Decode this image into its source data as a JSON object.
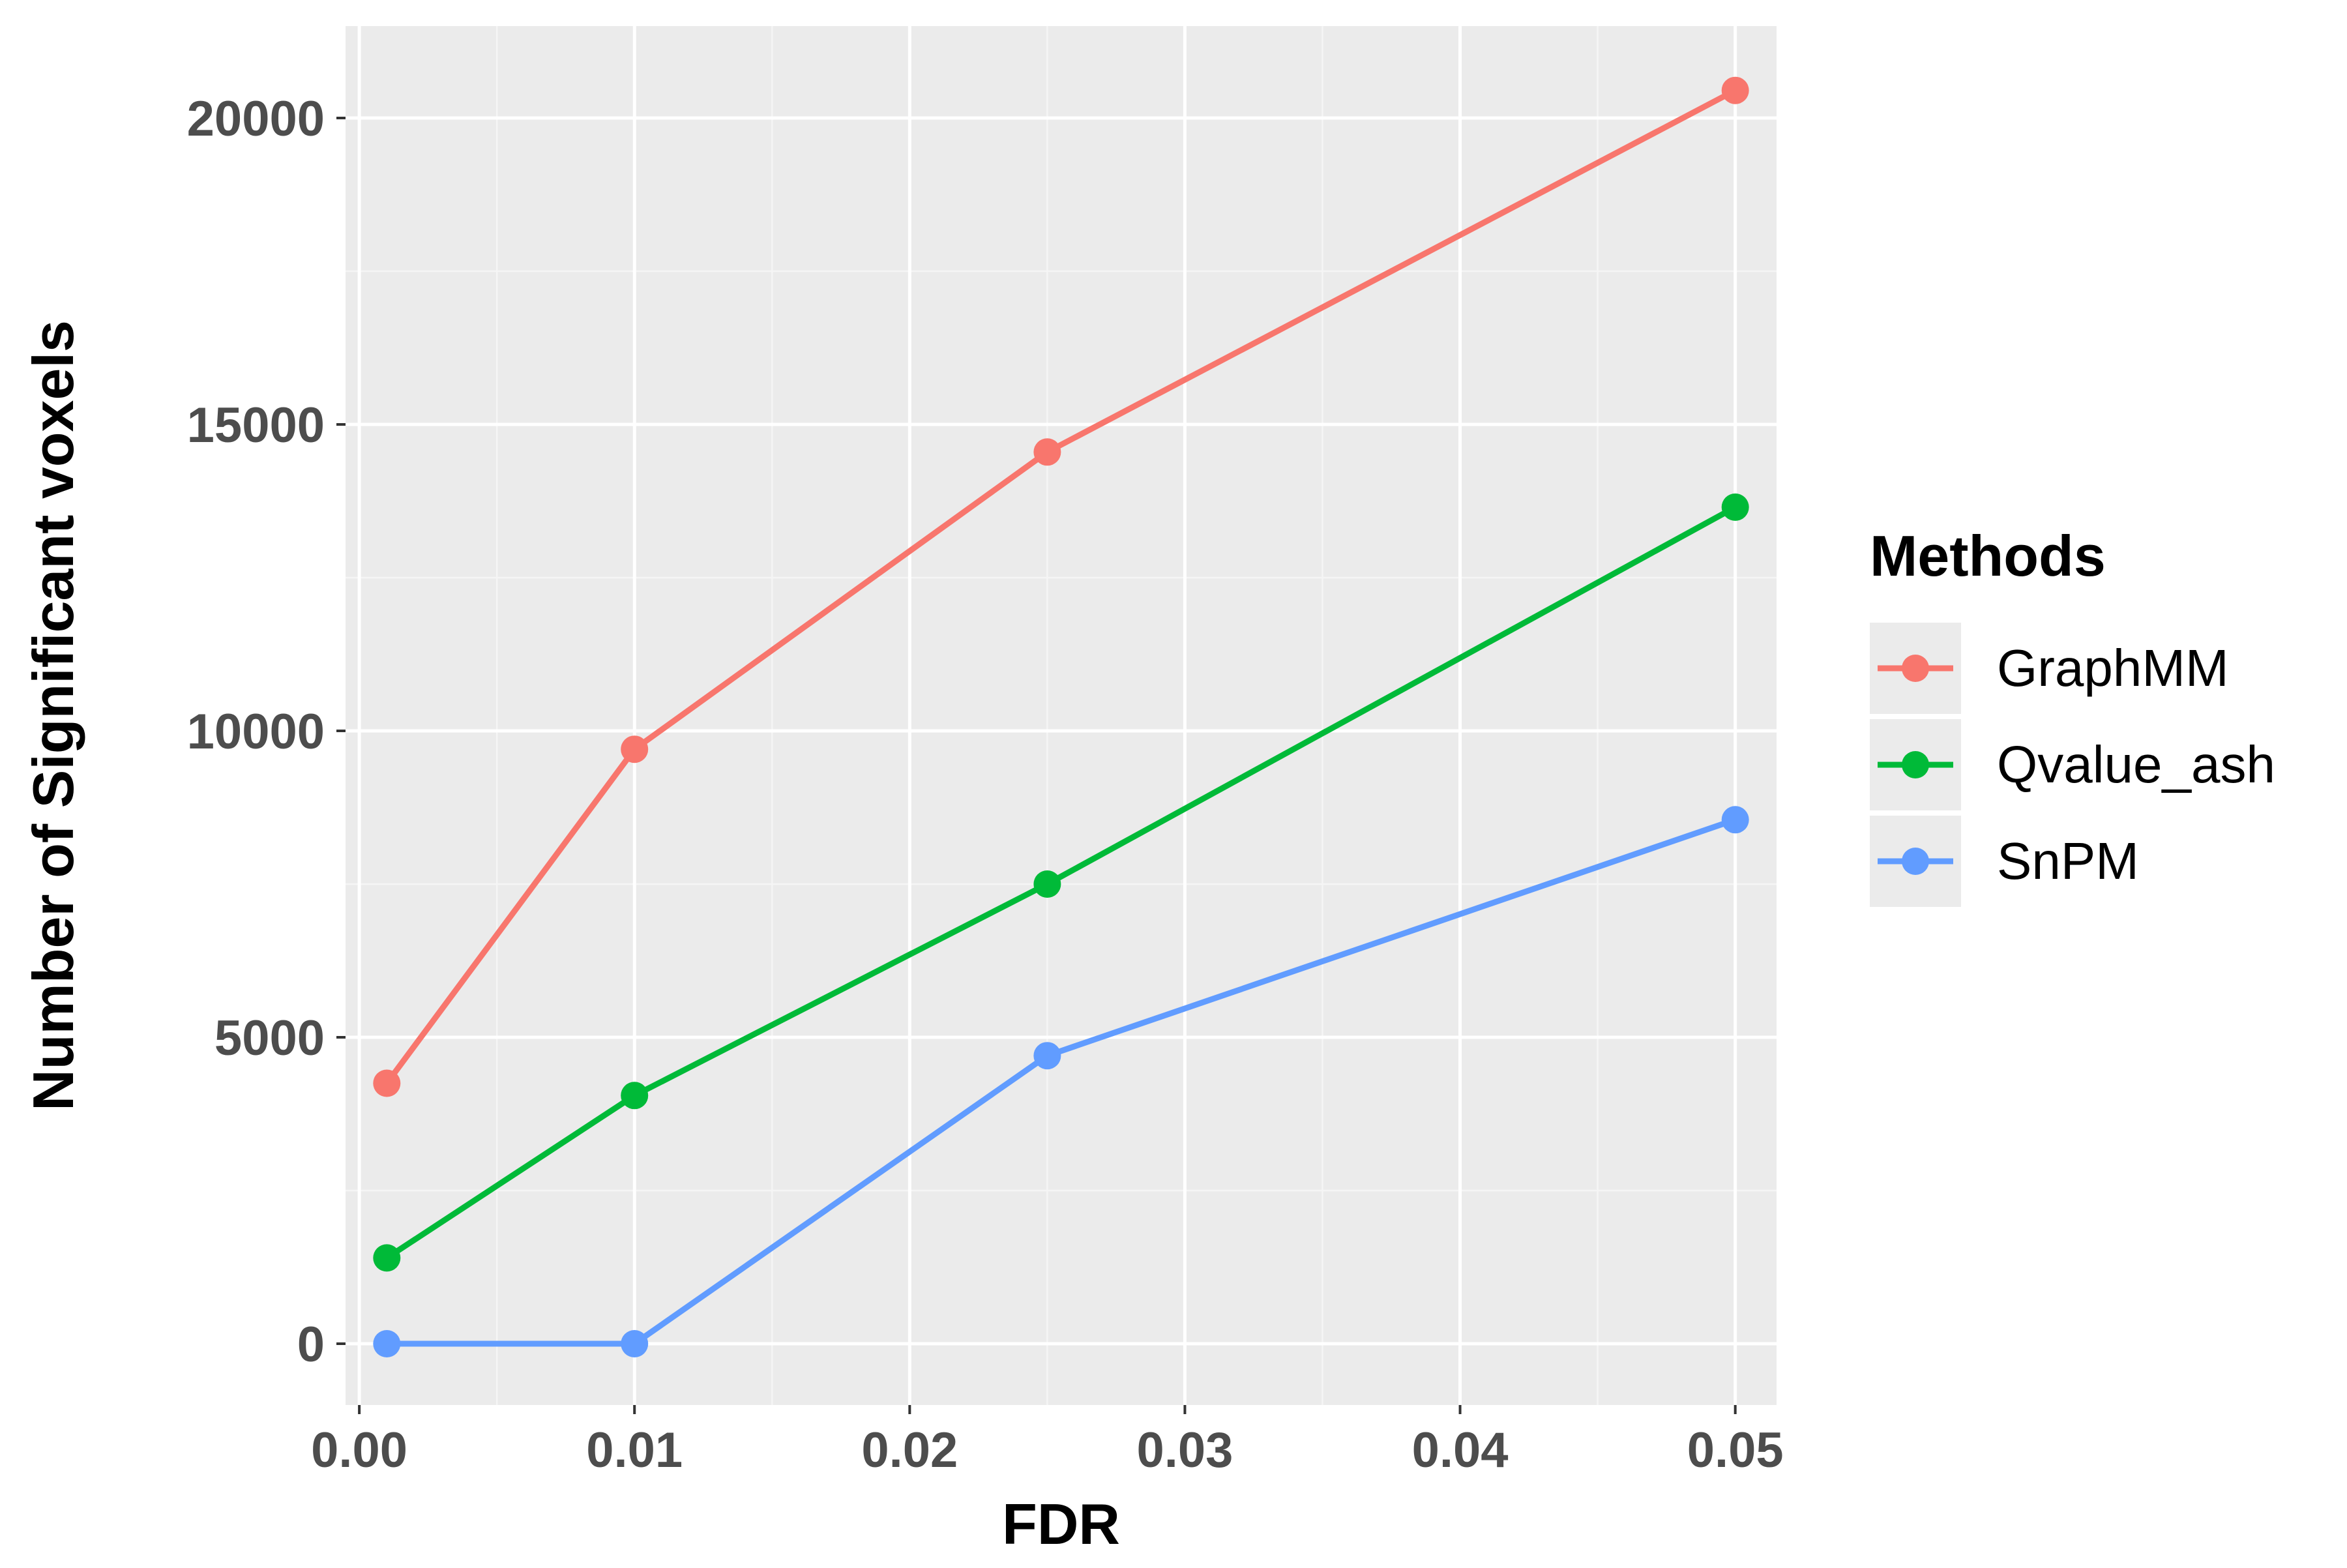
{
  "chart_data": {
    "type": "line",
    "title": "",
    "xlabel": "FDR",
    "ylabel": "Number of Significant voxels",
    "x": [
      0.001,
      0.01,
      0.025,
      0.05
    ],
    "xlim": [
      -0.0005,
      0.0515
    ],
    "ylim": [
      -1000,
      21500
    ],
    "x_ticks": [
      0.0,
      0.01,
      0.02,
      0.03,
      0.04,
      0.05
    ],
    "x_tick_labels": [
      "0.00",
      "0.01",
      "0.02",
      "0.03",
      "0.04",
      "0.05"
    ],
    "y_ticks": [
      0,
      5000,
      10000,
      15000,
      20000
    ],
    "y_tick_labels": [
      "0",
      "5000",
      "10000",
      "15000",
      "20000"
    ],
    "grid": true,
    "legend": {
      "title": "Methods",
      "position": "right"
    },
    "series": [
      {
        "name": "GraphMM",
        "color": "#F8766D",
        "values": [
          4250,
          9700,
          14550,
          20450
        ]
      },
      {
        "name": "Qvalue_ash",
        "color": "#00BA38",
        "values": [
          1400,
          4050,
          7500,
          13650
        ]
      },
      {
        "name": "SnPM",
        "color": "#619CFF",
        "values": [
          0,
          0,
          4700,
          8550
        ]
      }
    ]
  },
  "colors": {
    "panel_background": "#EBEBEB",
    "grid_major": "#FFFFFF",
    "grid_minor": "#F5F5F5",
    "tick_text": "#4D4D4D",
    "axis_title": "#000000",
    "legend_key_background": "#EBEBEB"
  }
}
